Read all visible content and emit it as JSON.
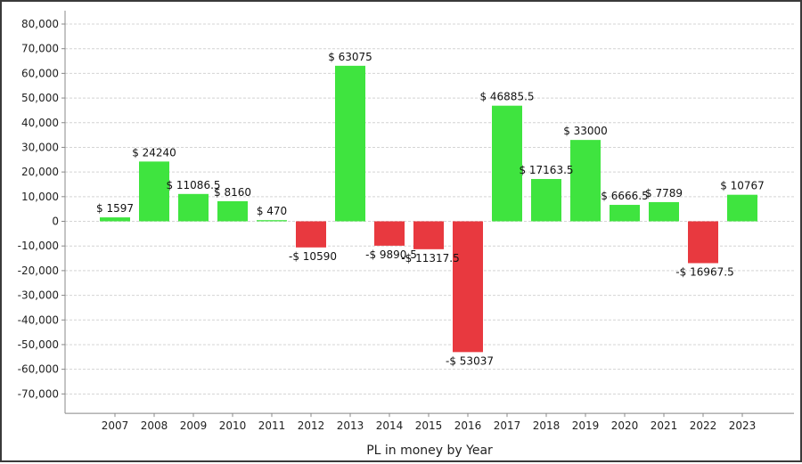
{
  "chart_data": {
    "type": "bar",
    "title": "",
    "xlabel": "PL in money by Year",
    "ylabel": "",
    "categories": [
      "2007",
      "2008",
      "2009",
      "2010",
      "2011",
      "2012",
      "2013",
      "2014",
      "2015",
      "2016",
      "2017",
      "2018",
      "2019",
      "2020",
      "2021",
      "2022",
      "2023"
    ],
    "values": [
      1597,
      24240,
      11086.5,
      8160,
      470,
      -10590,
      63075,
      -9890.5,
      -11317.5,
      -53037,
      46885.5,
      17163.5,
      33000,
      6666.5,
      7789,
      -16967.5,
      10767
    ],
    "data_labels": [
      "$ 1597",
      "$ 24240",
      "$ 11086.5",
      "$ 8160",
      "$ 470",
      "-$ 10590",
      "$ 63075",
      "-$ 9890.5",
      "-$ 11317.5",
      "-$ 53037",
      "$ 46885.5",
      "$ 17163.5",
      "$ 33000",
      "$ 6666.5",
      "$ 7789",
      "-$ 16967.5",
      "$ 10767"
    ],
    "ylim": [
      -75000,
      85000
    ],
    "yticks": [
      80000,
      70000,
      60000,
      50000,
      40000,
      30000,
      20000,
      10000,
      0,
      -10000,
      -20000,
      -30000,
      -40000,
      -50000,
      -60000,
      -70000
    ],
    "ytick_labels": [
      "80,000",
      "70,000",
      "60,000",
      "50,000",
      "40,000",
      "30,000",
      "20,000",
      "10,000",
      "0",
      "-10,000",
      "-20,000",
      "-30,000",
      "-40,000",
      "-50,000",
      "-60,000",
      "-70,000"
    ],
    "grid": true,
    "colors": {
      "positive": "#3fe43f",
      "negative": "#e8393f",
      "grid": "#d4d4d4",
      "axis": "#888888"
    }
  }
}
